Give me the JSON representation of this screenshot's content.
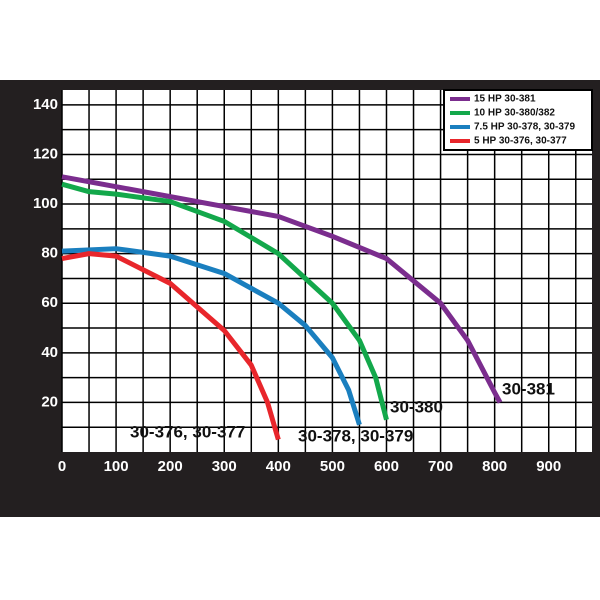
{
  "chart_data": {
    "type": "line",
    "series": [
      {
        "name": "15 HP  30-381",
        "color": "#7b2d8e",
        "x": [
          0,
          100,
          200,
          300,
          400,
          500,
          600,
          700,
          750,
          800,
          810
        ],
        "values": [
          111,
          107,
          103,
          99,
          95,
          87,
          78,
          60,
          45,
          24,
          20
        ]
      },
      {
        "name": "10 HP  30-380/382",
        "color": "#13a84b",
        "x": [
          0,
          50,
          100,
          200,
          300,
          400,
          500,
          550,
          580,
          600
        ],
        "values": [
          108,
          105,
          104,
          101,
          93,
          80,
          60,
          45,
          30,
          13
        ]
      },
      {
        "name": "7.5 HP  30-378, 30-379",
        "color": "#1a7fbf",
        "x": [
          0,
          100,
          200,
          300,
          400,
          450,
          500,
          530,
          550
        ],
        "values": [
          81,
          82,
          79,
          72,
          60,
          51,
          38,
          25,
          11
        ]
      },
      {
        "name": "5 HP  30-376, 30-377",
        "color": "#e8262b",
        "x": [
          0,
          50,
          100,
          200,
          300,
          350,
          380,
          400
        ],
        "values": [
          78,
          80,
          79,
          68,
          49,
          35,
          20,
          5
        ]
      }
    ],
    "annotations": [
      "30-381",
      "30-380",
      "30-378, 30-379",
      "30-376, 30-377"
    ],
    "xlim": [
      0,
      980
    ],
    "ylim": [
      0,
      146
    ],
    "xticks": [
      0,
      100,
      200,
      300,
      400,
      500,
      600,
      700,
      800,
      900
    ],
    "yticks": [
      20,
      40,
      60,
      80,
      100,
      120,
      140
    ],
    "minor_xticks": [
      50,
      150,
      250,
      350,
      450,
      550,
      650,
      750,
      850,
      950
    ],
    "minor_yticks": [
      10,
      30,
      50,
      70,
      90,
      110,
      130
    ],
    "grid": true,
    "legend": "upper right"
  }
}
